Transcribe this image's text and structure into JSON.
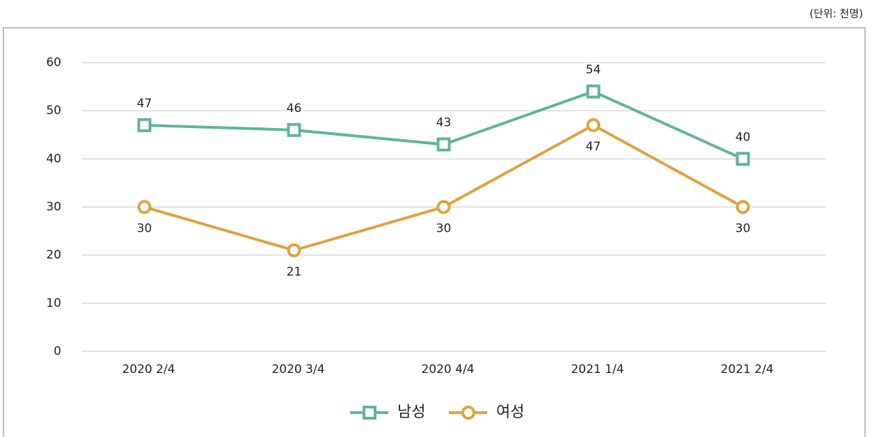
{
  "chart_data": {
    "type": "line",
    "unit": "(단위: 천명)",
    "categories": [
      "2020 2/4",
      "2020 3/4",
      "2020 4/4",
      "2021 1/4",
      "2021 2/4"
    ],
    "series": [
      {
        "name": "남성",
        "color": "#5fb3a1",
        "marker": "square",
        "values": [
          47,
          46,
          43,
          54,
          40
        ]
      },
      {
        "name": "여성",
        "color": "#e3a03e",
        "marker": "circle",
        "values": [
          30,
          21,
          30,
          47,
          30
        ]
      }
    ],
    "ylim": [
      0,
      60
    ],
    "yticks": [
      0,
      10,
      20,
      30,
      40,
      50,
      60
    ],
    "grid": true
  }
}
